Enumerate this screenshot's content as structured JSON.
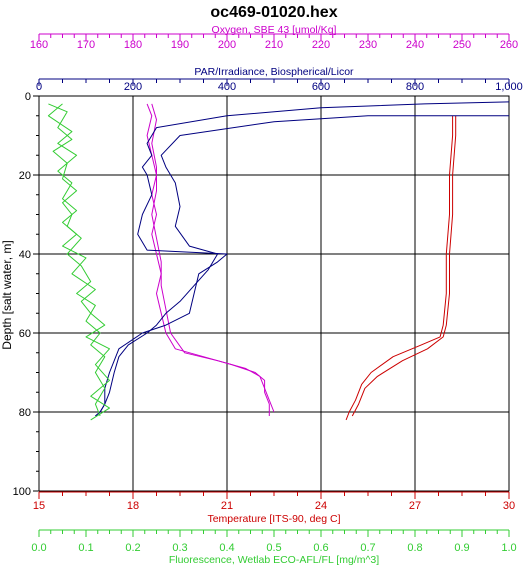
{
  "chart_data": {
    "type": "line",
    "title": "oc469-01020.hex",
    "y_axis": {
      "label": "Depth [salt water, m]",
      "range": [
        0,
        100
      ],
      "ticks": [
        0,
        20,
        40,
        60,
        80,
        100
      ],
      "inverted": true
    },
    "x_axes": [
      {
        "key": "oxygen",
        "label": "Oxygen, SBE 43 [umol/Kg]",
        "position": "top-outer",
        "color": "#cc00cc",
        "range": [
          160,
          260
        ],
        "ticks": [
          160,
          170,
          180,
          190,
          200,
          210,
          220,
          230,
          240,
          250,
          260
        ]
      },
      {
        "key": "par",
        "label": "PAR/Irradiance, Biospherical/Licor",
        "position": "top-inner",
        "color": "#000080",
        "range": [
          0,
          1000
        ],
        "ticks": [
          0,
          200,
          400,
          600,
          800,
          1000
        ],
        "tick_labels": [
          "0",
          "200",
          "400",
          "600",
          "800",
          "1,000"
        ]
      },
      {
        "key": "temperature",
        "label": "Temperature [ITS-90, deg C]",
        "position": "bottom-inner",
        "color": "#cc0000",
        "range": [
          15,
          30
        ],
        "ticks": [
          15,
          18,
          21,
          24,
          27,
          30
        ]
      },
      {
        "key": "fluorescence",
        "label": "Fluorescence, Wetlab ECO-AFL/FL [mg/m^3]",
        "position": "bottom-outer",
        "color": "#33cc33",
        "range": [
          0,
          1
        ],
        "ticks": [
          0.0,
          0.1,
          0.2,
          0.3,
          0.4,
          0.5,
          0.6,
          0.7,
          0.8,
          0.9,
          1.0
        ],
        "tick_labels": [
          "0.0",
          "0.1",
          "0.2",
          "0.3",
          "0.4",
          "0.5",
          "0.6",
          "0.7",
          "0.8",
          "0.9",
          "1.0"
        ]
      }
    ],
    "grid": true,
    "series": [
      {
        "key": "temperature",
        "axis": "temperature",
        "color": "#cc0000",
        "points": [
          [
            28.2,
            5
          ],
          [
            28.2,
            10
          ],
          [
            28.1,
            20
          ],
          [
            28.1,
            30
          ],
          [
            28.0,
            40
          ],
          [
            28.0,
            50
          ],
          [
            27.9,
            58
          ],
          [
            27.8,
            61
          ],
          [
            27.2,
            63
          ],
          [
            26.3,
            66
          ],
          [
            25.6,
            70
          ],
          [
            25.3,
            73
          ],
          [
            25.1,
            77
          ],
          [
            24.9,
            80
          ],
          [
            24.8,
            82
          ]
        ]
      },
      {
        "key": "temperature_upcast",
        "axis": "temperature",
        "color": "#cc0000",
        "points": [
          [
            28.3,
            5
          ],
          [
            28.3,
            10
          ],
          [
            28.2,
            20
          ],
          [
            28.2,
            30
          ],
          [
            28.1,
            40
          ],
          [
            28.1,
            50
          ],
          [
            28.0,
            58
          ],
          [
            27.9,
            61
          ],
          [
            27.4,
            64
          ],
          [
            26.6,
            67
          ],
          [
            25.8,
            71
          ],
          [
            25.4,
            74
          ],
          [
            25.2,
            78
          ],
          [
            25.0,
            81
          ]
        ]
      },
      {
        "key": "oxygen",
        "axis": "oxygen",
        "color": "#cc00cc",
        "points": [
          [
            183,
            2
          ],
          [
            184,
            5
          ],
          [
            183,
            10
          ],
          [
            184,
            15
          ],
          [
            185,
            20
          ],
          [
            184,
            25
          ],
          [
            185,
            30
          ],
          [
            184,
            35
          ],
          [
            185,
            40
          ],
          [
            186,
            45
          ],
          [
            185,
            50
          ],
          [
            186,
            55
          ],
          [
            187,
            60
          ],
          [
            189,
            64
          ],
          [
            195,
            66
          ],
          [
            201,
            68
          ],
          [
            206,
            70
          ],
          [
            208,
            72
          ],
          [
            208,
            75
          ],
          [
            209,
            78
          ],
          [
            209,
            81
          ]
        ]
      },
      {
        "key": "oxygen_upcast",
        "axis": "oxygen",
        "color": "#cc00cc",
        "points": [
          [
            184,
            2
          ],
          [
            185,
            6
          ],
          [
            184,
            12
          ],
          [
            185,
            18
          ],
          [
            185,
            24
          ],
          [
            184,
            30
          ],
          [
            185,
            36
          ],
          [
            186,
            42
          ],
          [
            186,
            48
          ],
          [
            187,
            54
          ],
          [
            188,
            60
          ],
          [
            191,
            65
          ],
          [
            198,
            67
          ],
          [
            204,
            69
          ],
          [
            207,
            71
          ],
          [
            208,
            74
          ],
          [
            209,
            77
          ],
          [
            210,
            80
          ]
        ]
      },
      {
        "key": "par",
        "axis": "par",
        "color": "#000080",
        "points": [
          [
            1000,
            1.5
          ],
          [
            820,
            2
          ],
          [
            600,
            3
          ],
          [
            400,
            5
          ],
          [
            250,
            8
          ],
          [
            230,
            12
          ],
          [
            240,
            15
          ],
          [
            220,
            18
          ],
          [
            230,
            20
          ],
          [
            240,
            25
          ],
          [
            220,
            30
          ],
          [
            210,
            35
          ],
          [
            230,
            39
          ],
          [
            400,
            40
          ],
          [
            380,
            42
          ],
          [
            340,
            45
          ],
          [
            330,
            50
          ],
          [
            320,
            55
          ],
          [
            270,
            58
          ],
          [
            220,
            60
          ],
          [
            170,
            64
          ],
          [
            160,
            67
          ],
          [
            150,
            70
          ],
          [
            140,
            74
          ],
          [
            140,
            78
          ],
          [
            130,
            80
          ],
          [
            120,
            81
          ]
        ]
      },
      {
        "key": "par_upcast",
        "axis": "par",
        "color": "#000080",
        "points": [
          [
            1000,
            5
          ],
          [
            700,
            5
          ],
          [
            500,
            6.5
          ],
          [
            300,
            10
          ],
          [
            260,
            15
          ],
          [
            270,
            18
          ],
          [
            290,
            22
          ],
          [
            300,
            28
          ],
          [
            290,
            33
          ],
          [
            320,
            38
          ],
          [
            380,
            40
          ],
          [
            360,
            44
          ],
          [
            330,
            48
          ],
          [
            300,
            52
          ],
          [
            270,
            55
          ],
          [
            250,
            58
          ],
          [
            230,
            60
          ],
          [
            190,
            63
          ],
          [
            170,
            66
          ],
          [
            160,
            70
          ],
          [
            150,
            75
          ],
          [
            140,
            78
          ],
          [
            130,
            80
          ],
          [
            120,
            81
          ]
        ]
      },
      {
        "key": "fluorescence",
        "axis": "fluorescence",
        "color": "#33cc33",
        "points": [
          [
            0.02,
            2
          ],
          [
            0.06,
            4
          ],
          [
            0.04,
            8
          ],
          [
            0.07,
            11
          ],
          [
            0.03,
            14
          ],
          [
            0.06,
            17
          ],
          [
            0.05,
            21
          ],
          [
            0.08,
            24
          ],
          [
            0.05,
            27
          ],
          [
            0.07,
            30
          ],
          [
            0.06,
            33
          ],
          [
            0.09,
            36
          ],
          [
            0.06,
            40
          ],
          [
            0.09,
            43
          ],
          [
            0.11,
            47
          ],
          [
            0.08,
            50
          ],
          [
            0.12,
            53
          ],
          [
            0.1,
            57
          ],
          [
            0.13,
            60
          ],
          [
            0.11,
            63
          ],
          [
            0.14,
            66
          ],
          [
            0.12,
            70
          ],
          [
            0.14,
            74
          ],
          [
            0.12,
            78
          ],
          [
            0.13,
            81
          ]
        ]
      },
      {
        "key": "fluorescence_upcast",
        "axis": "fluorescence",
        "color": "#33cc33",
        "points": [
          [
            0.05,
            2
          ],
          [
            0.02,
            5
          ],
          [
            0.07,
            9
          ],
          [
            0.04,
            12
          ],
          [
            0.08,
            15
          ],
          [
            0.04,
            19
          ],
          [
            0.07,
            22
          ],
          [
            0.05,
            26
          ],
          [
            0.08,
            29
          ],
          [
            0.05,
            32
          ],
          [
            0.08,
            35
          ],
          [
            0.05,
            38
          ],
          [
            0.1,
            41
          ],
          [
            0.07,
            45
          ],
          [
            0.12,
            49
          ],
          [
            0.09,
            52
          ],
          [
            0.11,
            55
          ],
          [
            0.14,
            58
          ],
          [
            0.1,
            61
          ],
          [
            0.15,
            64
          ],
          [
            0.12,
            68
          ],
          [
            0.15,
            72
          ],
          [
            0.11,
            76
          ],
          [
            0.15,
            79
          ],
          [
            0.11,
            82
          ]
        ]
      }
    ]
  }
}
